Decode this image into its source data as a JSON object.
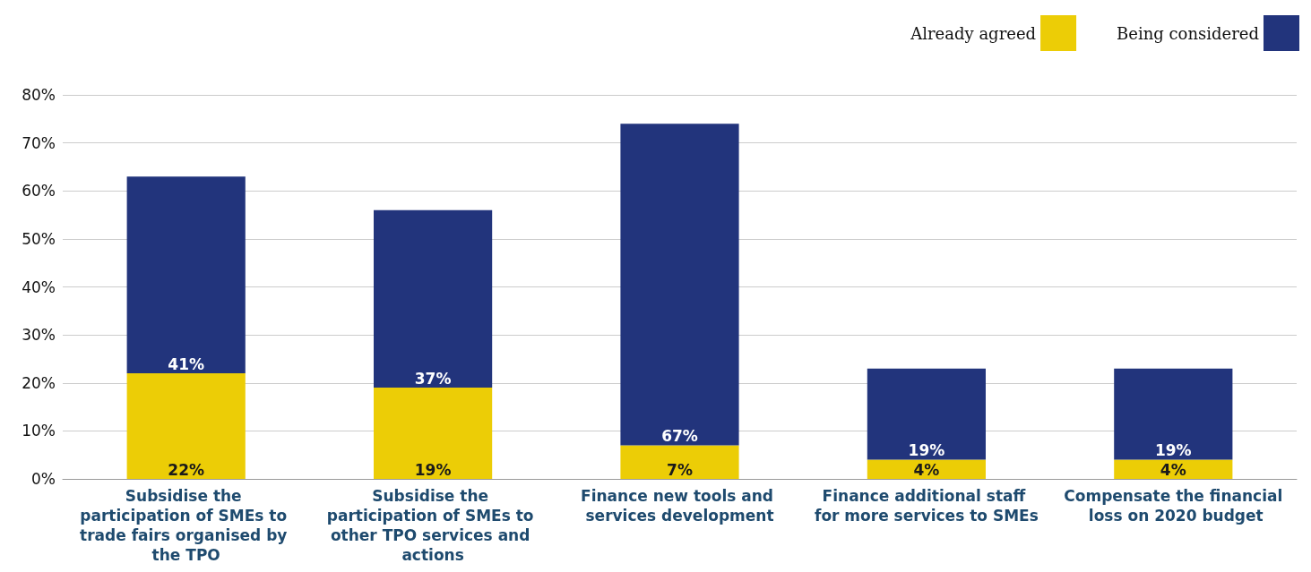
{
  "chart_data": {
    "type": "bar",
    "stacked": true,
    "categories": [
      "Subsidise the participation of SMEs to trade fairs organised by the TPO",
      "Subsidise the participation of SMEs to other TPO services and actions",
      "Finance new tools and services development",
      "Finance additional staff for more services to SMEs",
      "Compensate the financial loss on 2020 budget"
    ],
    "series": [
      {
        "name": "Already agreed",
        "color": "#eccd06",
        "values": [
          22,
          19,
          7,
          4,
          4
        ],
        "value_labels": [
          "22%",
          "19%",
          "7%",
          "4%",
          "4%"
        ]
      },
      {
        "name": "Being considered",
        "color": "#22347c",
        "values": [
          41,
          37,
          67,
          19,
          19
        ],
        "value_labels": [
          "41%",
          "37%",
          "67%",
          "19%",
          "19%"
        ]
      }
    ],
    "ylim": [
      0,
      80
    ],
    "yticks": [
      {
        "value": 0,
        "label": "0%"
      },
      {
        "value": 10,
        "label": "10%"
      },
      {
        "value": 20,
        "label": "20%"
      },
      {
        "value": 30,
        "label": "30%"
      },
      {
        "value": 40,
        "label": "40%"
      },
      {
        "value": 50,
        "label": "50%"
      },
      {
        "value": 60,
        "label": "60%"
      },
      {
        "value": 70,
        "label": "70%"
      },
      {
        "value": 80,
        "label": "80%"
      }
    ],
    "grid": "y",
    "legend": "top right"
  }
}
